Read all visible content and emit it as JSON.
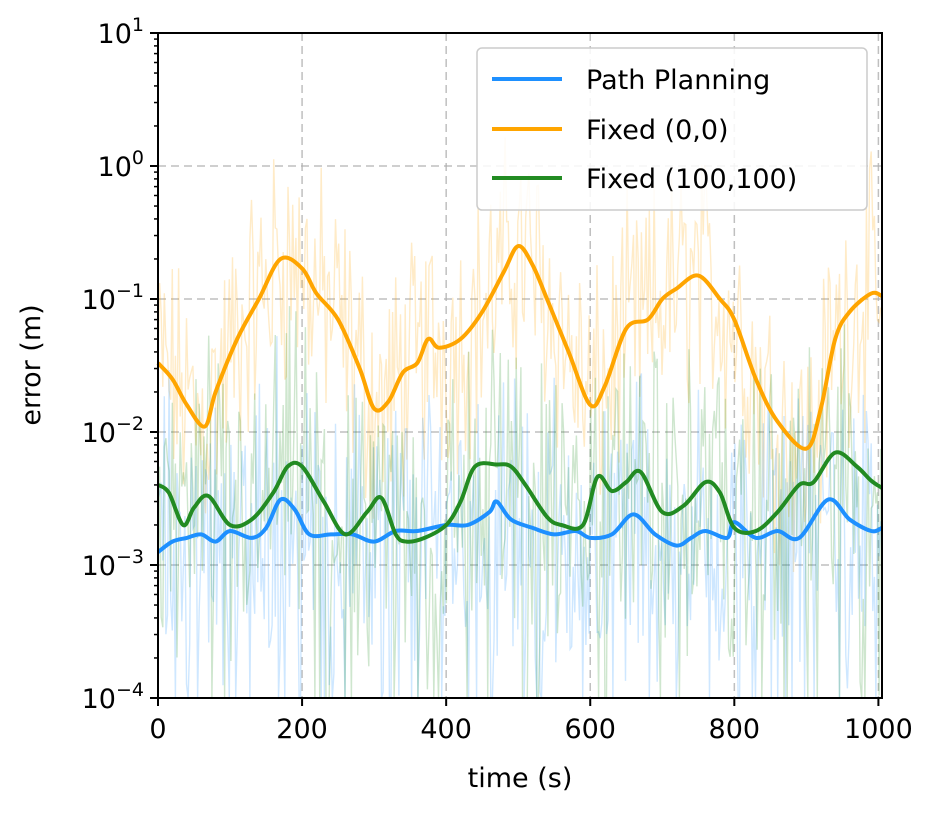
{
  "chart_data": {
    "type": "line",
    "title": "",
    "xlabel": "time (s)",
    "ylabel": "error (m)",
    "xlim": [
      0,
      1005
    ],
    "ylim": [
      0.0001,
      10
    ],
    "yscale": "log",
    "grid": true,
    "legend_position": "top-right",
    "xticks": [
      0,
      200,
      400,
      600,
      800,
      1000
    ],
    "xtick_labels": [
      "0",
      "200",
      "400",
      "600",
      "800",
      "1000"
    ],
    "yticks": [
      0.0001,
      0.001,
      0.01,
      0.1,
      1,
      10
    ],
    "ytick_bases": [
      "10",
      "10",
      "10",
      "10",
      "10",
      "10"
    ],
    "ytick_exps": [
      "−4",
      "−3",
      "−2",
      "−1",
      "0",
      "1"
    ],
    "series": [
      {
        "name": "Path Planning",
        "color": "#1e90ff",
        "x": [
          0,
          20,
          40,
          60,
          80,
          100,
          130,
          150,
          170,
          190,
          210,
          240,
          270,
          300,
          330,
          360,
          400,
          430,
          460,
          470,
          490,
          520,
          550,
          580,
          600,
          630,
          660,
          690,
          720,
          740,
          760,
          790,
          800,
          830,
          860,
          890,
          930,
          960,
          990,
          1005
        ],
        "y": [
          0.00125,
          0.0015,
          0.0016,
          0.0017,
          0.0015,
          0.0018,
          0.0016,
          0.0019,
          0.0031,
          0.0026,
          0.0017,
          0.0017,
          0.0017,
          0.0015,
          0.0018,
          0.0018,
          0.002,
          0.002,
          0.0025,
          0.003,
          0.0022,
          0.0019,
          0.0017,
          0.0018,
          0.0016,
          0.0017,
          0.0024,
          0.0017,
          0.0014,
          0.0016,
          0.0018,
          0.0016,
          0.0021,
          0.0016,
          0.0018,
          0.0016,
          0.0031,
          0.0022,
          0.0018,
          0.0019
        ]
      },
      {
        "name": "Fixed (0,0)",
        "color": "#ffa500",
        "x": [
          0,
          20,
          40,
          65,
          80,
          110,
          140,
          170,
          200,
          220,
          250,
          280,
          300,
          320,
          340,
          360,
          375,
          390,
          420,
          450,
          480,
          500,
          520,
          540,
          570,
          600,
          620,
          650,
          680,
          700,
          720,
          750,
          780,
          800,
          830,
          860,
          900,
          920,
          940,
          960,
          990,
          1005
        ],
        "y": [
          0.033,
          0.025,
          0.016,
          0.011,
          0.02,
          0.05,
          0.1,
          0.2,
          0.17,
          0.11,
          0.07,
          0.03,
          0.015,
          0.017,
          0.028,
          0.033,
          0.05,
          0.043,
          0.05,
          0.08,
          0.16,
          0.25,
          0.18,
          0.1,
          0.04,
          0.016,
          0.022,
          0.06,
          0.07,
          0.1,
          0.12,
          0.15,
          0.1,
          0.07,
          0.025,
          0.012,
          0.0075,
          0.015,
          0.05,
          0.08,
          0.11,
          0.105
        ]
      },
      {
        "name": "Fixed (100,100)",
        "color": "#228b22",
        "x": [
          0,
          15,
          35,
          50,
          70,
          100,
          130,
          160,
          180,
          200,
          230,
          260,
          290,
          310,
          330,
          345,
          370,
          400,
          420,
          440,
          470,
          490,
          510,
          540,
          560,
          590,
          610,
          630,
          650,
          670,
          700,
          730,
          760,
          780,
          800,
          830,
          860,
          890,
          910,
          940,
          970,
          990,
          1005
        ],
        "y": [
          0.004,
          0.0035,
          0.002,
          0.0027,
          0.0033,
          0.002,
          0.0022,
          0.0035,
          0.0055,
          0.0055,
          0.003,
          0.0017,
          0.0025,
          0.0032,
          0.0017,
          0.0015,
          0.0016,
          0.002,
          0.003,
          0.0055,
          0.0057,
          0.0055,
          0.004,
          0.0023,
          0.002,
          0.002,
          0.0046,
          0.0036,
          0.0042,
          0.005,
          0.0025,
          0.0028,
          0.0042,
          0.0035,
          0.0019,
          0.0018,
          0.0025,
          0.004,
          0.0042,
          0.007,
          0.0055,
          0.0043,
          0.0038
        ]
      }
    ]
  }
}
